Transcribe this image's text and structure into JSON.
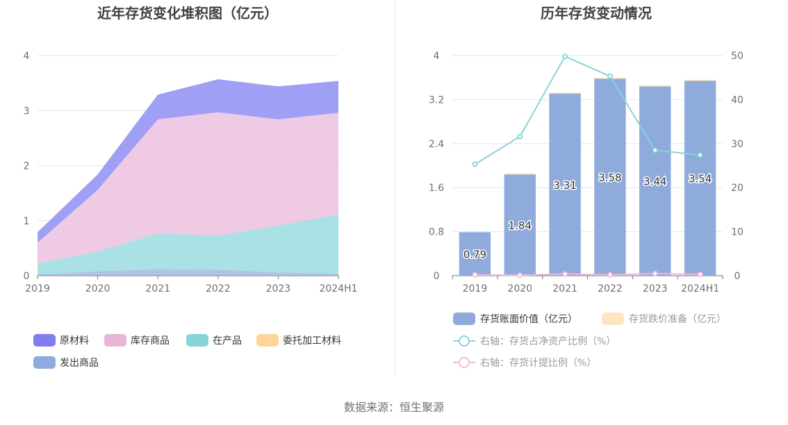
{
  "source": "数据来源：恒生聚源",
  "chart_data": [
    {
      "type": "area",
      "stacked": true,
      "title": "近年存货变化堆积图（亿元）",
      "categories": [
        "2019",
        "2020",
        "2021",
        "2022",
        "2023",
        "2024H1"
      ],
      "ylim": [
        0,
        4
      ],
      "yticks": [
        "0",
        "1",
        "2",
        "3",
        "4"
      ],
      "grid": true,
      "legend_position": "bottom",
      "series": [
        {
          "name": "发出商品",
          "color": "#8eabdc",
          "values": [
            0.02,
            0.08,
            0.12,
            0.11,
            0.06,
            0.04
          ]
        },
        {
          "name": "委托加工材料",
          "color": "#ffd59a",
          "values": [
            0.0,
            0.0,
            0.0,
            0.0,
            0.0,
            0.0
          ]
        },
        {
          "name": "在产品",
          "color": "#86d4d8",
          "values": [
            0.2,
            0.36,
            0.65,
            0.62,
            0.85,
            1.07
          ]
        },
        {
          "name": "库存商品",
          "color": "#e8b4d8",
          "values": [
            0.38,
            1.12,
            2.07,
            2.24,
            1.93,
            1.85
          ]
        },
        {
          "name": "原材料",
          "color": "#7f7ff2",
          "values": [
            0.19,
            0.28,
            0.45,
            0.6,
            0.6,
            0.58
          ]
        }
      ],
      "legend_order": [
        "原材料",
        "库存商品",
        "在产品",
        "委托加工材料",
        "发出商品"
      ]
    },
    {
      "type": "bar",
      "title": "历年存货变动情况",
      "categories": [
        "2019",
        "2020",
        "2021",
        "2022",
        "2023",
        "2024H1"
      ],
      "ylim": [
        0,
        4
      ],
      "yticks": [
        "0",
        "0.8",
        "1.6",
        "2.4",
        "3.2",
        "4"
      ],
      "y2lim": [
        0,
        50
      ],
      "y2ticks": [
        "0",
        "10",
        "20",
        "30",
        "40",
        "50"
      ],
      "grid": true,
      "legend_position": "bottom",
      "bars": [
        {
          "name": "存货账面价值（亿元）",
          "color": "#8eabdc",
          "values": [
            0.79,
            1.84,
            3.31,
            3.58,
            3.44,
            3.54
          ],
          "labels": [
            "0.79",
            "1.84",
            "3.31",
            "3.58",
            "3.44",
            "3.54"
          ]
        },
        {
          "name": "存货跌价准备（亿元）",
          "color": "#fde5c2",
          "values": [
            0.0,
            0.01,
            0.02,
            0.02,
            0.02,
            0.02
          ]
        }
      ],
      "lines": [
        {
          "name": "右轴：存货占净资产比例（%）",
          "color": "#86d4d8",
          "values": [
            25.3,
            31.6,
            49.8,
            45.3,
            28.5,
            27.4
          ]
        },
        {
          "name": "右轴：存货计提比例（%）",
          "color": "#f3b9d6",
          "values": [
            0.2,
            0.1,
            0.4,
            0.2,
            0.5,
            0.3
          ]
        }
      ]
    }
  ]
}
